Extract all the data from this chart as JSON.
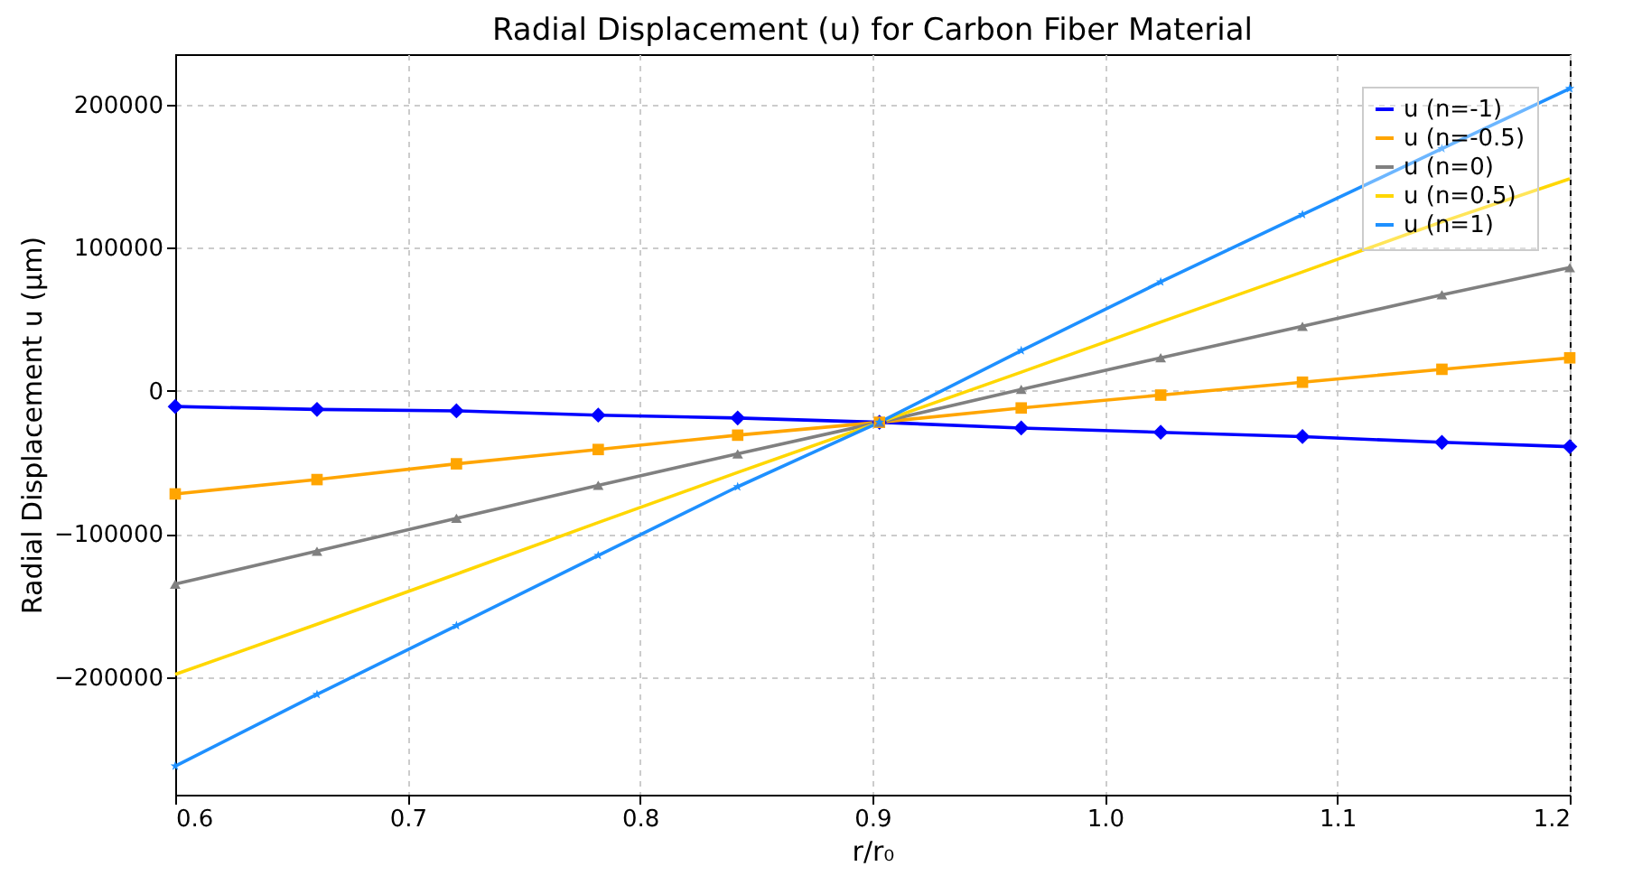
{
  "chart_data": {
    "type": "line",
    "title": "Radial Displacement (u) for Carbon Fiber Material",
    "xlabel": "r/r₀",
    "ylabel": "Radial Displacement u (μm)",
    "x": [
      0.6,
      0.661,
      0.721,
      0.782,
      0.842,
      0.903,
      0.964,
      1.024,
      1.085,
      1.145,
      1.2
    ],
    "series": [
      {
        "name": "u (n=-1)",
        "color": "#0000ff",
        "marker": "diamond",
        "values": [
          -11000,
          -13000,
          -14000,
          -17000,
          -19000,
          -22000,
          -26000,
          -29000,
          -32000,
          -36000,
          -39000
        ]
      },
      {
        "name": "u (n=-0.5)",
        "color": "#ffa500",
        "marker": "square",
        "values": [
          -72000,
          -62000,
          -51000,
          -41000,
          -31000,
          -22000,
          -12000,
          -3000,
          6000,
          15000,
          23000
        ]
      },
      {
        "name": "u (n=0)",
        "color": "#808080",
        "marker": "triangle",
        "values": [
          -135000,
          -112000,
          -89000,
          -66000,
          -44000,
          -22000,
          1000,
          23000,
          45000,
          67000,
          86000
        ]
      },
      {
        "name": "u (n=0.5)",
        "color": "#ffd700",
        "marker": "none",
        "values": [
          -198000,
          -163000,
          -128000,
          -92000,
          -57000,
          -22000,
          13000,
          48000,
          83000,
          118000,
          148000
        ]
      },
      {
        "name": "u (n=1)",
        "color": "#1e90ff",
        "marker": "star",
        "values": [
          -262000,
          -212000,
          -164000,
          -115000,
          -67000,
          -22000,
          28000,
          76000,
          123000,
          169000,
          211000
        ]
      }
    ],
    "xlim": [
      0.6,
      1.2
    ],
    "xticks": [
      0.6,
      0.7,
      0.8,
      0.9,
      {
        "value": 1.0,
        "label": "1.0"
      },
      1.1,
      1.2
    ],
    "ylim": [
      -282000,
      235000
    ],
    "yticks": [
      -200000,
      -100000,
      0,
      100000,
      200000
    ],
    "grid": true,
    "legend": "top right",
    "line_style": "solid"
  }
}
